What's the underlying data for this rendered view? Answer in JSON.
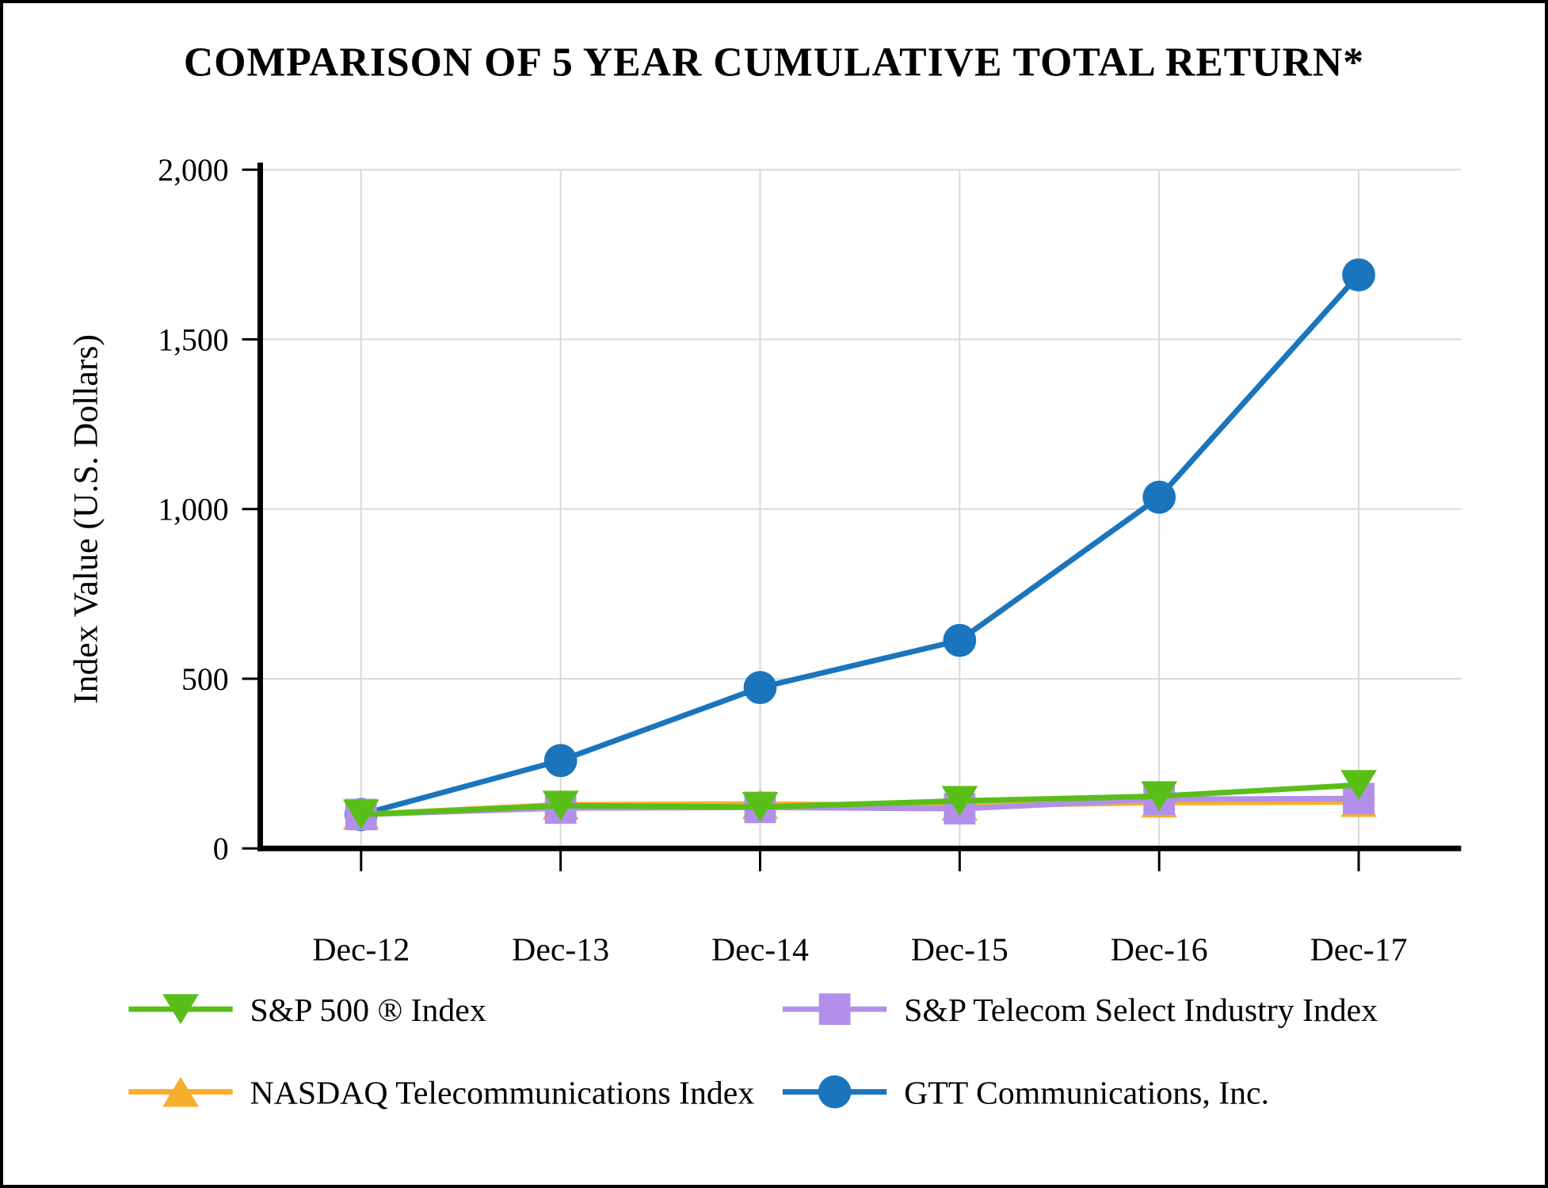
{
  "figure": {
    "background": "#FFFFFF",
    "border_color": "#000000"
  },
  "chart_data": {
    "type": "line",
    "title": "COMPARISON OF 5 YEAR CUMULATIVE TOTAL RETURN*",
    "ylabel": "Index Value (U.S. Dollars)",
    "xlabel": "",
    "categories": [
      "Dec-12",
      "Dec-13",
      "Dec-14",
      "Dec-15",
      "Dec-16",
      "Dec-17"
    ],
    "ylim": [
      0,
      2000
    ],
    "yticks": [
      {
        "label": "0",
        "value": 0
      },
      {
        "label": "500",
        "value": 500
      },
      {
        "label": "1,000",
        "value": 1000
      },
      {
        "label": "1,500",
        "value": 1500
      },
      {
        "label": "2,000",
        "value": 2000
      }
    ],
    "grid": true,
    "gridline_color": "#D9D9D9",
    "axis_color": "#000000",
    "legend_position": "bottom-2x2",
    "series": [
      {
        "name": "S&P 500 ® Index",
        "marker": "triangle-down",
        "color": "#5ABE19",
        "values": [
          100,
          126,
          122,
          140,
          154,
          187
        ]
      },
      {
        "name": "S&P Telecom Select Industry Index",
        "marker": "square",
        "color": "#B28FE8",
        "values": [
          100,
          119,
          121,
          117,
          145,
          147
        ]
      },
      {
        "name": "NASDAQ Telecommunications Index",
        "marker": "triangle-up",
        "color": "#F6AF2D",
        "values": [
          100,
          129,
          131,
          126,
          135,
          137
        ]
      },
      {
        "name": "GTT Communications, Inc.",
        "marker": "circle",
        "color": "#1B75BC",
        "values": [
          100,
          259,
          474,
          613,
          1035,
          1690
        ]
      }
    ]
  }
}
